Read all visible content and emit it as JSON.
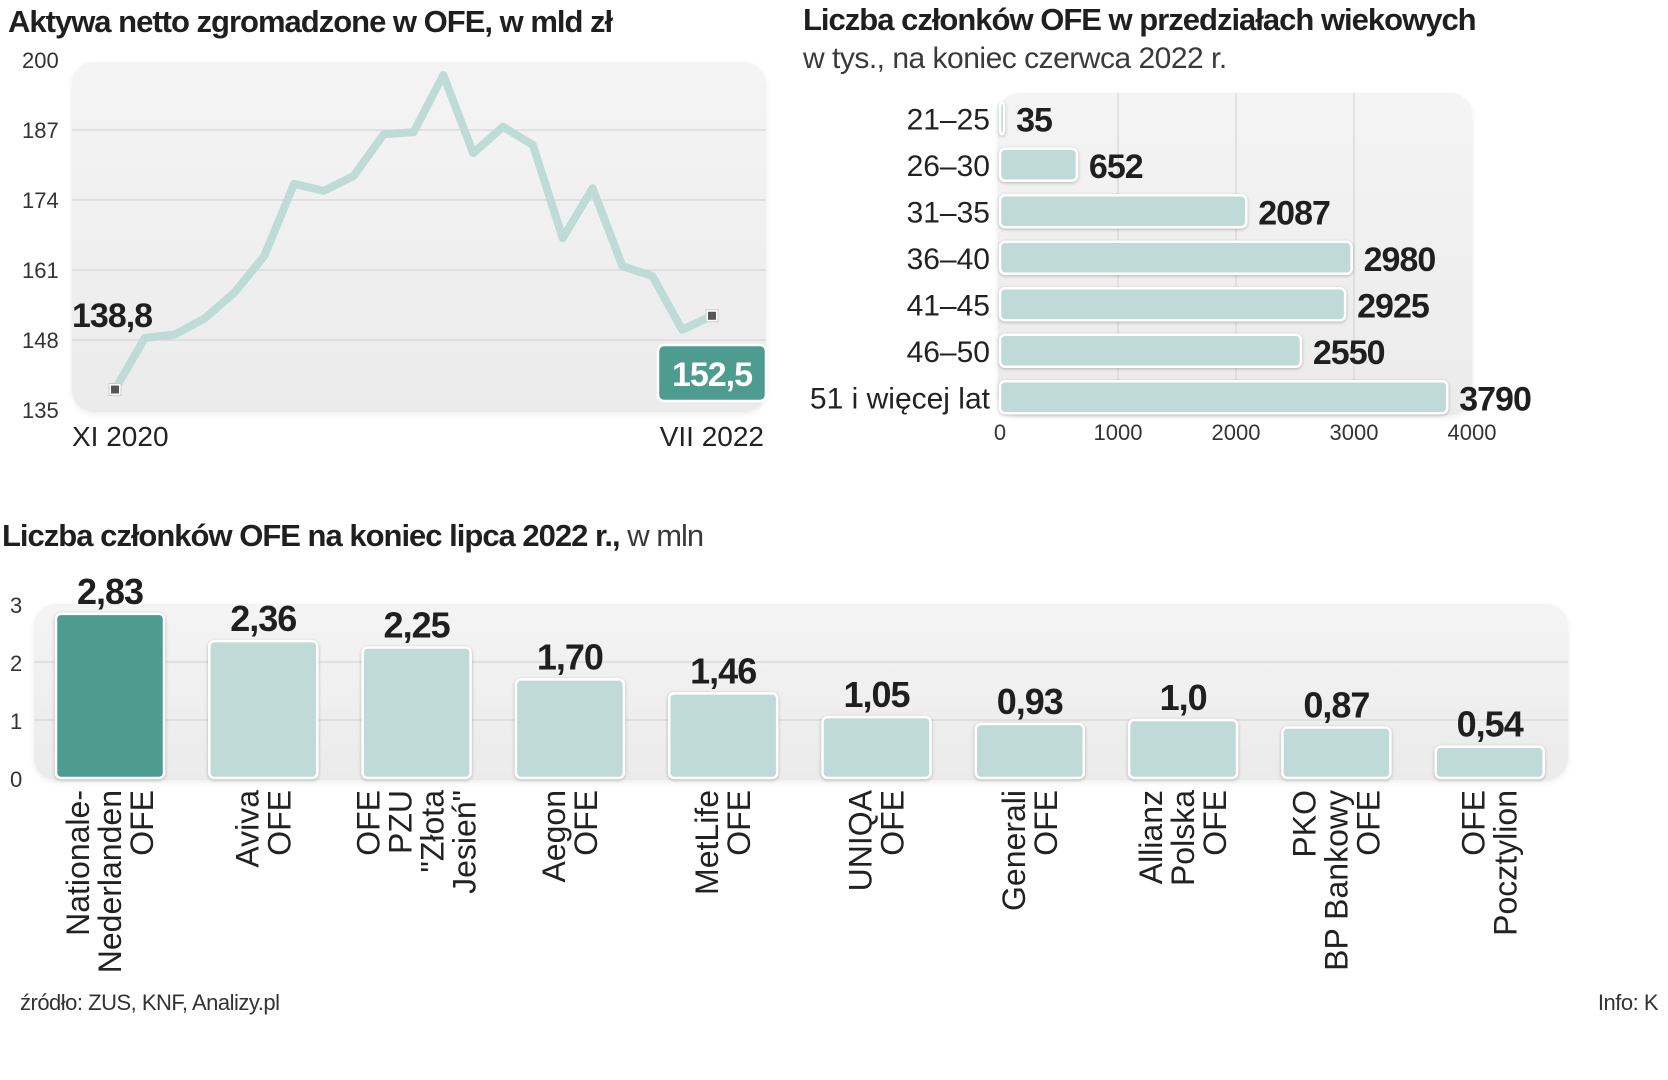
{
  "chart_data": [
    {
      "type": "line",
      "title": "Aktywa netto zgromadzone w OFE, w mld zł",
      "xlabel": "",
      "ylabel": "",
      "x_tick_labels": [
        "XI 2020",
        "VII 2022"
      ],
      "y_ticks": [
        135,
        148,
        161,
        174,
        187,
        200
      ],
      "ylim": [
        135,
        200
      ],
      "grid": true,
      "series": [
        {
          "name": "Aktywa netto",
          "values": [
            138.8,
            148.4,
            149.0,
            152.0,
            156.8,
            163.6,
            177.0,
            175.7,
            178.5,
            186.2,
            186.6,
            197.2,
            182.7,
            187.6,
            184.2,
            166.9,
            176.2,
            161.7,
            159.9,
            149.9,
            152.5
          ]
        }
      ],
      "annotations": [
        {
          "label": "138,8",
          "point": "first"
        },
        {
          "label": "152,5",
          "point": "last",
          "highlighted": true
        }
      ],
      "colors": {
        "line": "#bfdbd6",
        "highlight": "#4e9b8f",
        "marker": "#555555"
      }
    },
    {
      "type": "bar",
      "orientation": "horizontal",
      "title": "Liczba członków OFE w przedziałach wiekowych",
      "subtitle": "w tys., na koniec czerwca 2022 r.",
      "categories": [
        "21–25",
        "26–30",
        "31–35",
        "36–40",
        "41–45",
        "46–50",
        "51 i więcej lat"
      ],
      "values": [
        35,
        652,
        2087,
        2980,
        2925,
        2550,
        3790
      ],
      "value_labels": [
        "35",
        "652",
        "2087",
        "2980",
        "2925",
        "2550",
        "3790"
      ],
      "x_ticks": [
        0,
        1000,
        2000,
        3000,
        4000
      ],
      "xlim": [
        0,
        4000
      ],
      "grid": true,
      "colors": {
        "bar": "#c0dbd7"
      }
    },
    {
      "type": "bar",
      "title": "Liczba członków OFE na koniec lipca 2022 r.,",
      "title_suffix": "w mln",
      "categories": [
        [
          "Nationale-",
          "Nederlanden",
          "OFE"
        ],
        [
          "Aviva",
          "OFE"
        ],
        [
          "OFE",
          "PZU",
          "\"Złota",
          "Jesień\""
        ],
        [
          "Aegon",
          "OFE"
        ],
        [
          "MetLife",
          "OFE"
        ],
        [
          "UNIQA",
          "OFE"
        ],
        [
          "Generali",
          "OFE"
        ],
        [
          "Allianz",
          "Polska",
          "OFE"
        ],
        [
          "PKO",
          "BP Bankowy",
          "OFE"
        ],
        [
          "OFE",
          "Pocztylion"
        ]
      ],
      "values": [
        2.83,
        2.36,
        2.25,
        1.7,
        1.46,
        1.05,
        0.93,
        1.0,
        0.87,
        0.54
      ],
      "value_labels": [
        "2,83",
        "2,36",
        "2,25",
        "1,70",
        "1,46",
        "1,05",
        "0,93",
        "1,0",
        "0,87",
        "0,54"
      ],
      "highlighted_index": 0,
      "y_ticks": [
        0,
        1,
        2,
        3
      ],
      "ylim": [
        0,
        3
      ],
      "grid": true,
      "colors": {
        "bar": "#c0dbd7",
        "highlight": "#4e9b8f"
      }
    }
  ],
  "footer": {
    "source": "źródło: ZUS, KNF, Analizy.pl",
    "credit": "Info: K"
  }
}
